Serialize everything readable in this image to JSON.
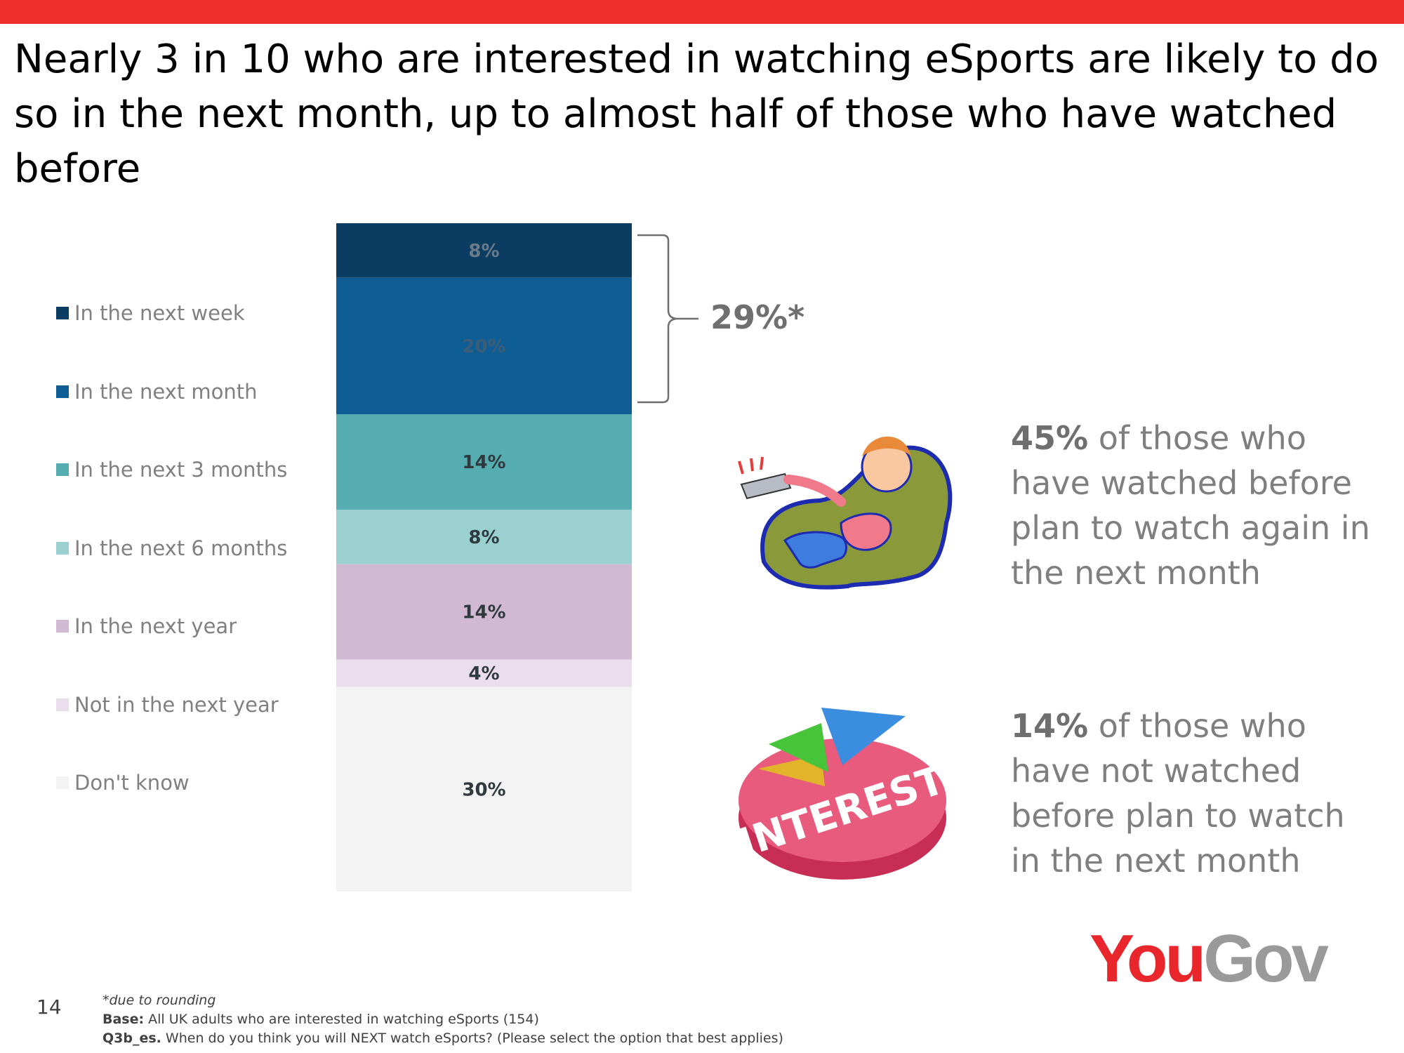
{
  "slide": {
    "title": "Nearly 3 in 10 who are interested in watching eSports are likely to do so in the next month, up to almost half of those who have watched before",
    "accent_color": "#ee2e2b",
    "page_number": "14"
  },
  "chart_data": {
    "type": "bar",
    "stacked": true,
    "orientation": "vertical",
    "categories": [
      ""
    ],
    "series": [
      {
        "name": "In the next week",
        "values": [
          8
        ],
        "label": "8%",
        "color": "#0b3d62",
        "label_color": "#6a7a88"
      },
      {
        "name": "In the next month",
        "values": [
          20
        ],
        "label": "20%",
        "color": "#0e5e95",
        "label_color": "#3c5d78"
      },
      {
        "name": "In the next 3 months",
        "values": [
          14
        ],
        "label": "14%",
        "color": "#55adb1",
        "label_color": "#2f3a3e"
      },
      {
        "name": "In the next 6 months",
        "values": [
          8
        ],
        "label": "8%",
        "color": "#9bd0d1",
        "label_color": "#2f3a3e"
      },
      {
        "name": "In the next year",
        "values": [
          14
        ],
        "label": "14%",
        "color": "#d1b9d4",
        "label_color": "#2f3a3e"
      },
      {
        "name": "Not in the next year",
        "values": [
          4
        ],
        "label": "4%",
        "color": "#ebdeec",
        "label_color": "#2f3a3e"
      },
      {
        "name": "Don't know",
        "values": [
          30
        ],
        "label": "30%",
        "color": "#f3f3f3",
        "label_color": "#2f3a3e"
      }
    ],
    "legend_position": "left",
    "grid": false,
    "bracket": {
      "label": "29%*",
      "covers": [
        "In the next week",
        "In the next month"
      ]
    }
  },
  "callouts": [
    {
      "emphasis": "45%",
      "text": " of those who have watched before plan to watch again in the next month",
      "icon": "person-watching-tv-icon"
    },
    {
      "emphasis": "14%",
      "text": " of those who have not watched before plan to watch in the next month",
      "icon": "interest-pie-icon"
    }
  ],
  "interest_pie_text": "INTEREST",
  "footnotes": {
    "rounding": "*due to rounding",
    "base_label": "Base:",
    "base_text": " All UK adults who are interested in watching eSports (154)",
    "question_label": "Q3b_es.",
    "question_text": " When do you think you will NEXT watch eSports? (Please select the option that best applies)"
  },
  "logo": {
    "part1": "You",
    "part2": "Gov"
  }
}
